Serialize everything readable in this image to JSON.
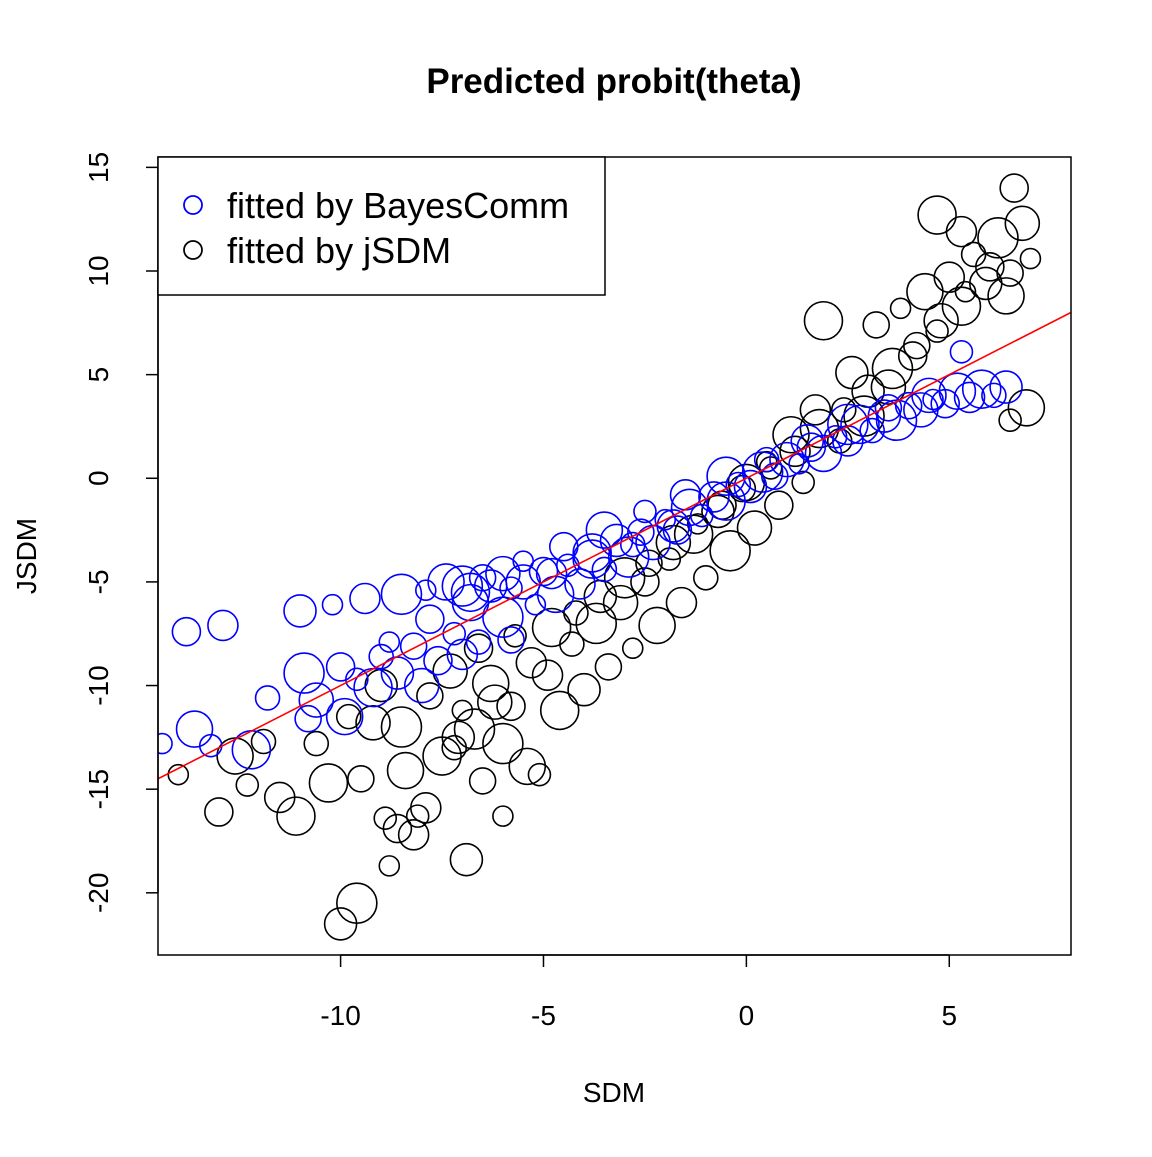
{
  "chart_data": {
    "type": "scatter",
    "title": "Predicted probit(theta)",
    "xlabel": "SDM",
    "ylabel": "JSDM",
    "xlim": [
      -14.5,
      8.0
    ],
    "ylim": [
      -23.0,
      15.5
    ],
    "xticks": [
      -10,
      -5,
      0,
      5
    ],
    "xtick_labels": [
      "-10",
      "-5",
      "0",
      "5"
    ],
    "yticks": [
      -20,
      -15,
      -10,
      -5,
      0,
      5,
      10,
      15
    ],
    "ytick_labels": [
      "-20",
      "-15",
      "-10",
      "-5",
      "0",
      "5",
      "10",
      "15"
    ],
    "grid": false,
    "legend_position": "top-left",
    "marker": "open-circle",
    "series": [
      {
        "name": "fitted by BayesComm",
        "color": "#0000ff",
        "points": [
          [
            -14.4,
            -12.8
          ],
          [
            -13.8,
            -7.4
          ],
          [
            -13.6,
            -12.1
          ],
          [
            -13.2,
            -12.9
          ],
          [
            -12.9,
            -7.1
          ],
          [
            -12.2,
            -13.1
          ],
          [
            -11.8,
            -10.6
          ],
          [
            -11.0,
            -6.4
          ],
          [
            -10.9,
            -9.4
          ],
          [
            -10.8,
            -11.6
          ],
          [
            -10.6,
            -10.7
          ],
          [
            -10.2,
            -6.1
          ],
          [
            -10.0,
            -9.1
          ],
          [
            -9.9,
            -11.5
          ],
          [
            -9.6,
            -9.7
          ],
          [
            -9.4,
            -5.8
          ],
          [
            -9.2,
            -10.1
          ],
          [
            -9.0,
            -8.6
          ],
          [
            -8.6,
            -9.4
          ],
          [
            -8.5,
            -5.6
          ],
          [
            -8.2,
            -8.1
          ],
          [
            -8.0,
            -10.0
          ],
          [
            -7.9,
            -5.4
          ],
          [
            -7.6,
            -8.8
          ],
          [
            -7.4,
            -5.0
          ],
          [
            -7.2,
            -7.5
          ],
          [
            -7.0,
            -8.5
          ],
          [
            -6.8,
            -5.5
          ],
          [
            -6.6,
            -7.9
          ],
          [
            -6.3,
            -5.2
          ],
          [
            -6.0,
            -6.7
          ],
          [
            -5.8,
            -7.8
          ],
          [
            -5.5,
            -5.0
          ],
          [
            -5.2,
            -6.1
          ],
          [
            -5.0,
            -4.5
          ],
          [
            -4.7,
            -5.6
          ],
          [
            -4.4,
            -4.2
          ],
          [
            -4.1,
            -5.1
          ],
          [
            -3.8,
            -3.6
          ],
          [
            -3.5,
            -4.4
          ],
          [
            -3.2,
            -3.0
          ],
          [
            -2.9,
            -3.8
          ],
          [
            -2.6,
            -2.6
          ],
          [
            -2.3,
            -3.1
          ],
          [
            -2.0,
            -2.0
          ],
          [
            -1.7,
            -2.5
          ],
          [
            -1.4,
            -1.4
          ],
          [
            -1.1,
            -1.8
          ],
          [
            -0.8,
            -0.9
          ],
          [
            -0.5,
            -1.1
          ],
          [
            -0.2,
            -0.3
          ],
          [
            0.1,
            -0.4
          ],
          [
            0.4,
            0.3
          ],
          [
            0.7,
            0.1
          ],
          [
            1.0,
            0.9
          ],
          [
            1.3,
            0.7
          ],
          [
            1.6,
            1.5
          ],
          [
            1.9,
            1.2
          ],
          [
            2.2,
            2.0
          ],
          [
            2.5,
            1.8
          ],
          [
            2.8,
            2.6
          ],
          [
            3.1,
            2.3
          ],
          [
            3.4,
            3.0
          ],
          [
            3.7,
            2.8
          ],
          [
            4.0,
            3.5
          ],
          [
            4.3,
            3.3
          ],
          [
            4.6,
            3.8
          ],
          [
            4.9,
            3.6
          ],
          [
            5.2,
            4.2
          ],
          [
            5.3,
            6.1
          ],
          [
            5.5,
            3.9
          ],
          [
            5.8,
            4.3
          ],
          [
            6.1,
            4.0
          ],
          [
            6.4,
            4.4
          ],
          [
            -7.0,
            -5.2
          ],
          [
            -6.5,
            -4.8
          ],
          [
            -6.0,
            -4.6
          ],
          [
            -5.5,
            -4.0
          ],
          [
            -4.5,
            -3.3
          ],
          [
            -3.5,
            -2.5
          ],
          [
            -2.5,
            -1.6
          ],
          [
            -1.5,
            -0.8
          ],
          [
            -0.5,
            0.1
          ],
          [
            0.5,
            0.9
          ],
          [
            1.5,
            1.8
          ],
          [
            2.5,
            2.6
          ],
          [
            3.5,
            3.4
          ],
          [
            4.5,
            4.0
          ],
          [
            -8.8,
            -7.9
          ],
          [
            -7.8,
            -6.8
          ],
          [
            -6.8,
            -6.0
          ],
          [
            -5.8,
            -5.3
          ],
          [
            -4.8,
            -4.6
          ],
          [
            -3.8,
            -3.9
          ],
          [
            -2.8,
            -3.2
          ],
          [
            -1.8,
            -2.3
          ]
        ]
      },
      {
        "name": "fitted by jSDM",
        "color": "#000000",
        "points": [
          [
            -14.0,
            -14.3
          ],
          [
            -13.0,
            -16.1
          ],
          [
            -12.6,
            -13.4
          ],
          [
            -12.3,
            -14.8
          ],
          [
            -11.5,
            -15.4
          ],
          [
            -11.1,
            -16.3
          ],
          [
            -10.6,
            -12.8
          ],
          [
            -10.0,
            -21.5
          ],
          [
            -9.6,
            -20.5
          ],
          [
            -9.5,
            -14.5
          ],
          [
            -9.2,
            -11.8
          ],
          [
            -8.8,
            -18.7
          ],
          [
            -8.6,
            -16.9
          ],
          [
            -8.4,
            -14.1
          ],
          [
            -8.1,
            -16.3
          ],
          [
            -7.9,
            -15.9
          ],
          [
            -7.5,
            -13.4
          ],
          [
            -7.2,
            -13.0
          ],
          [
            -6.9,
            -18.4
          ],
          [
            -6.7,
            -12.1
          ],
          [
            -6.5,
            -14.6
          ],
          [
            -6.2,
            -10.8
          ],
          [
            -6.0,
            -16.3
          ],
          [
            -5.8,
            -11.0
          ],
          [
            -5.4,
            -13.9
          ],
          [
            -5.1,
            -14.3
          ],
          [
            -4.9,
            -9.5
          ],
          [
            -4.6,
            -11.2
          ],
          [
            -4.3,
            -8.0
          ],
          [
            -4.0,
            -10.2
          ],
          [
            -3.7,
            -7.0
          ],
          [
            -3.4,
            -9.1
          ],
          [
            -3.1,
            -6.0
          ],
          [
            -2.8,
            -8.2
          ],
          [
            -2.5,
            -5.0
          ],
          [
            -2.2,
            -7.1
          ],
          [
            -1.9,
            -3.9
          ],
          [
            -1.6,
            -6.0
          ],
          [
            -1.3,
            -2.7
          ],
          [
            -1.0,
            -4.8
          ],
          [
            -0.7,
            -1.6
          ],
          [
            -0.4,
            -3.5
          ],
          [
            -0.1,
            -0.5
          ],
          [
            0.2,
            -2.4
          ],
          [
            0.5,
            0.8
          ],
          [
            0.8,
            -1.3
          ],
          [
            1.1,
            2.1
          ],
          [
            1.4,
            -0.2
          ],
          [
            1.7,
            3.3
          ],
          [
            1.9,
            7.6
          ],
          [
            2.3,
            1.8
          ],
          [
            2.6,
            5.1
          ],
          [
            2.9,
            3.0
          ],
          [
            3.2,
            7.4
          ],
          [
            3.5,
            4.4
          ],
          [
            3.8,
            8.2
          ],
          [
            4.1,
            5.9
          ],
          [
            4.4,
            9.0
          ],
          [
            4.7,
            7.1
          ],
          [
            5.0,
            9.7
          ],
          [
            5.3,
            8.3
          ],
          [
            5.6,
            10.8
          ],
          [
            5.9,
            9.4
          ],
          [
            6.2,
            11.6
          ],
          [
            6.5,
            9.9
          ],
          [
            6.8,
            12.3
          ],
          [
            7.0,
            10.6
          ],
          [
            6.6,
            14.0
          ],
          [
            6.9,
            3.4
          ],
          [
            6.5,
            2.8
          ],
          [
            5.3,
            11.9
          ],
          [
            4.7,
            12.7
          ],
          [
            -9.8,
            -11.5
          ],
          [
            -9.0,
            -10.0
          ],
          [
            -8.5,
            -12.0
          ],
          [
            -7.8,
            -10.5
          ],
          [
            -7.3,
            -9.3
          ],
          [
            -7.0,
            -11.2
          ],
          [
            -6.6,
            -8.2
          ],
          [
            -6.3,
            -9.9
          ],
          [
            -5.7,
            -7.6
          ],
          [
            -5.3,
            -8.9
          ],
          [
            -4.8,
            -7.2
          ],
          [
            -4.2,
            -6.5
          ],
          [
            -3.6,
            -5.7
          ],
          [
            -3.0,
            -4.8
          ],
          [
            -2.4,
            -4.1
          ],
          [
            -1.8,
            -3.1
          ],
          [
            -1.2,
            -2.2
          ],
          [
            -0.6,
            -1.3
          ],
          [
            0.0,
            -0.2
          ],
          [
            0.6,
            0.5
          ],
          [
            1.2,
            1.3
          ],
          [
            1.8,
            2.4
          ],
          [
            2.4,
            3.3
          ],
          [
            3.0,
            4.2
          ],
          [
            3.6,
            5.3
          ],
          [
            4.2,
            6.4
          ],
          [
            4.8,
            7.6
          ],
          [
            5.4,
            9.0
          ],
          [
            6.0,
            10.2
          ],
          [
            6.4,
            8.8
          ],
          [
            -8.9,
            -16.4
          ],
          [
            -8.2,
            -17.2
          ],
          [
            -10.3,
            -14.7
          ],
          [
            -11.9,
            -12.7
          ],
          [
            -7.1,
            -12.5
          ],
          [
            -6.0,
            -12.8
          ]
        ]
      }
    ],
    "reference_line": {
      "color": "#ff0000",
      "type": "line",
      "intercept": 0.0,
      "slope": 1.0
    }
  }
}
